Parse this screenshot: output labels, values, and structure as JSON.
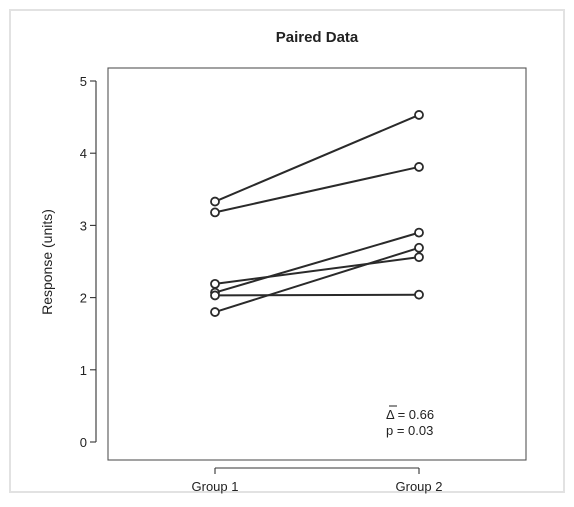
{
  "chart_data": {
    "type": "line",
    "title": "Paired Data",
    "xlabel": "",
    "ylabel": "Response (units)",
    "categories": [
      "Group 1",
      "Group 2"
    ],
    "ylim": [
      0,
      5
    ],
    "yticks": [
      "0",
      "1",
      "2",
      "3",
      "4",
      "5"
    ],
    "grid": false,
    "pairs": [
      [
        3.33,
        4.53
      ],
      [
        3.18,
        3.81
      ],
      [
        2.19,
        2.56
      ],
      [
        2.07,
        2.9
      ],
      [
        2.03,
        2.04
      ],
      [
        1.8,
        2.69
      ]
    ],
    "annotation": {
      "delta_label": "Δ = 0.66",
      "p_label": "p = 0.03"
    }
  }
}
